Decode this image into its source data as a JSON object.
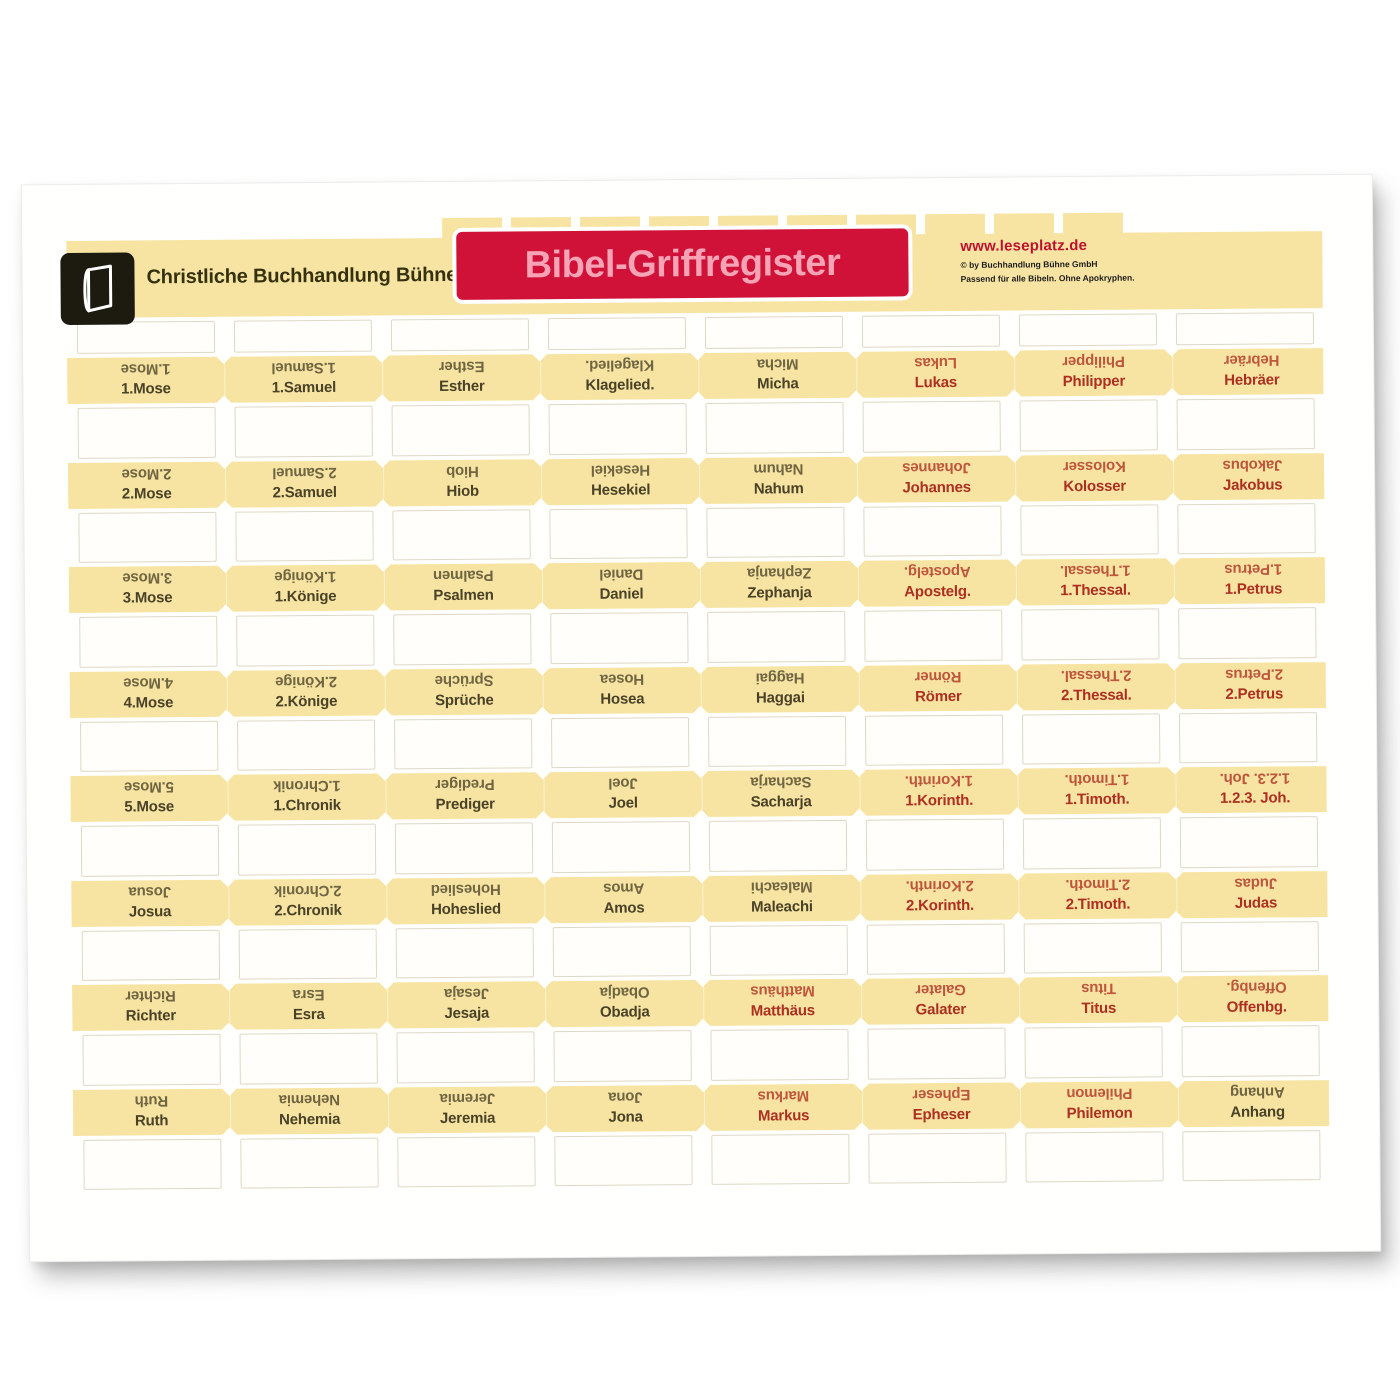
{
  "colors": {
    "yellow": "#f7e4a2",
    "banner_red": "#d01239",
    "banner_text": "#f6a3b5",
    "brand_text": "#35310f",
    "website_red": "#c01030",
    "fine_print": "#1c1c1c",
    "tab_dark": "#4a4228",
    "tab_red": "#ad2f21",
    "backing_border": "#ded8c6"
  },
  "header": {
    "brand": "Christliche Buchhandlung Bühne",
    "title": "Bibel-Griffregister",
    "website": "www.leseplatz.de",
    "copyright": "© by Buchhandlung Bühne GmbH",
    "note": "Passend für alle Bibeln. Ohne Apokryphen."
  },
  "tabs": {
    "rows": [
      {
        "cells": [
          {
            "label": "1.Mose",
            "color": "dark"
          },
          {
            "label": "1.Samuel",
            "color": "dark"
          },
          {
            "label": "Esther",
            "color": "dark"
          },
          {
            "label": "Klagelied.",
            "color": "dark"
          },
          {
            "label": "Micha",
            "color": "dark"
          },
          {
            "label": "Lukas",
            "color": "red"
          },
          {
            "label": "Philipper",
            "color": "red"
          },
          {
            "label": "Hebräer",
            "color": "red"
          }
        ]
      },
      {
        "cells": [
          {
            "label": "2.Mose",
            "color": "dark"
          },
          {
            "label": "2.Samuel",
            "color": "dark"
          },
          {
            "label": "Hiob",
            "color": "dark"
          },
          {
            "label": "Hesekiel",
            "color": "dark"
          },
          {
            "label": "Nahum",
            "color": "dark"
          },
          {
            "label": "Johannes",
            "color": "red"
          },
          {
            "label": "Kolosser",
            "color": "red"
          },
          {
            "label": "Jakobus",
            "color": "red"
          }
        ]
      },
      {
        "cells": [
          {
            "label": "3.Mose",
            "color": "dark"
          },
          {
            "label": "1.Könige",
            "color": "dark"
          },
          {
            "label": "Psalmen",
            "color": "dark"
          },
          {
            "label": "Daniel",
            "color": "dark"
          },
          {
            "label": "Zephanja",
            "color": "dark"
          },
          {
            "label": "Apostelg.",
            "color": "red"
          },
          {
            "label": "1.Thessal.",
            "color": "red"
          },
          {
            "label": "1.Petrus",
            "color": "red"
          }
        ]
      },
      {
        "cells": [
          {
            "label": "4.Mose",
            "color": "dark"
          },
          {
            "label": "2.Könige",
            "color": "dark"
          },
          {
            "label": "Sprüche",
            "color": "dark"
          },
          {
            "label": "Hosea",
            "color": "dark"
          },
          {
            "label": "Haggai",
            "color": "dark"
          },
          {
            "label": "Römer",
            "color": "red"
          },
          {
            "label": "2.Thessal.",
            "color": "red"
          },
          {
            "label": "2.Petrus",
            "color": "red"
          }
        ]
      },
      {
        "cells": [
          {
            "label": "5.Mose",
            "color": "dark"
          },
          {
            "label": "1.Chronik",
            "color": "dark"
          },
          {
            "label": "Prediger",
            "color": "dark"
          },
          {
            "label": "Joel",
            "color": "dark"
          },
          {
            "label": "Sacharja",
            "color": "dark"
          },
          {
            "label": "1.Korinth.",
            "color": "red"
          },
          {
            "label": "1.Timoth.",
            "color": "red"
          },
          {
            "label": "1.2.3. Joh.",
            "color": "red"
          }
        ]
      },
      {
        "cells": [
          {
            "label": "Josua",
            "color": "dark"
          },
          {
            "label": "2.Chronik",
            "color": "dark"
          },
          {
            "label": "Hoheslied",
            "color": "dark"
          },
          {
            "label": "Amos",
            "color": "dark"
          },
          {
            "label": "Maleachi",
            "color": "dark"
          },
          {
            "label": "2.Korinth.",
            "color": "red"
          },
          {
            "label": "2.Timoth.",
            "color": "red"
          },
          {
            "label": "Judas",
            "color": "red"
          }
        ]
      },
      {
        "cells": [
          {
            "label": "Richter",
            "color": "dark"
          },
          {
            "label": "Esra",
            "color": "dark"
          },
          {
            "label": "Jesaja",
            "color": "dark"
          },
          {
            "label": "Obadja",
            "color": "dark"
          },
          {
            "label": "Matthäus",
            "color": "red"
          },
          {
            "label": "Galater",
            "color": "red"
          },
          {
            "label": "Titus",
            "color": "red"
          },
          {
            "label": "Offenbg.",
            "color": "red"
          }
        ]
      },
      {
        "cells": [
          {
            "label": "Ruth",
            "color": "dark"
          },
          {
            "label": "Nehemia",
            "color": "dark"
          },
          {
            "label": "Jeremia",
            "color": "dark"
          },
          {
            "label": "Jona",
            "color": "dark"
          },
          {
            "label": "Markus",
            "color": "red"
          },
          {
            "label": "Epheser",
            "color": "red"
          },
          {
            "label": "Philemon",
            "color": "red"
          },
          {
            "label": "Anhang",
            "color": "dark"
          }
        ]
      }
    ]
  }
}
